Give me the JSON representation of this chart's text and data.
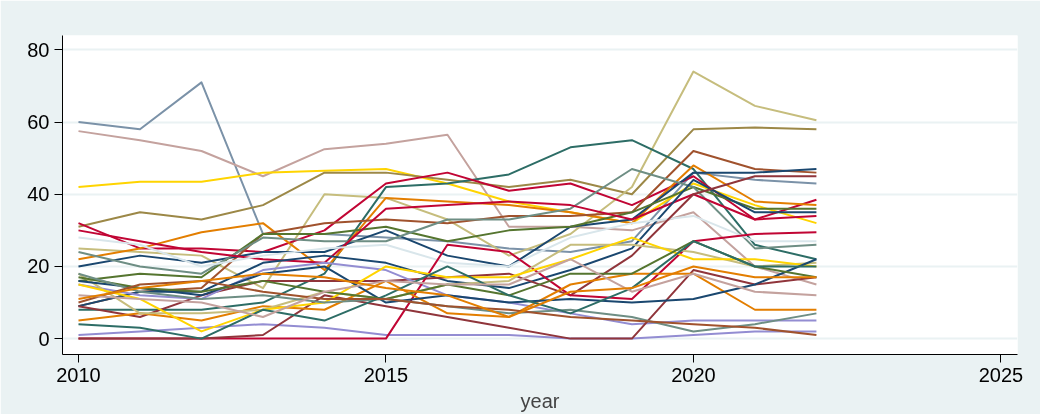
{
  "chart_data": {
    "type": "line",
    "xlabel": "year",
    "x": [
      2010,
      2011,
      2012,
      2013,
      2014,
      2015,
      2016,
      2017,
      2018,
      2019,
      2020,
      2021,
      2022
    ],
    "xlim": [
      2009.74,
      2025.27
    ],
    "xticks": [
      2010,
      2015,
      2020,
      2025
    ],
    "ylim": [
      -4.4,
      84
    ],
    "yticks": [
      0,
      20,
      40,
      60,
      80
    ],
    "grid": "y",
    "marker": "none",
    "line_style": "solid",
    "series": [
      {
        "color": "#7b92a8",
        "values": [
          60,
          58,
          71,
          29,
          29,
          28,
          27,
          25,
          24,
          27,
          46,
          44,
          43
        ]
      },
      {
        "color": "#c4a29e",
        "values": [
          57.5,
          55,
          52,
          45,
          52.5,
          54,
          56.5,
          31,
          31,
          30,
          35,
          20,
          15
        ]
      },
      {
        "color": "#ffd400",
        "values": [
          42,
          43.5,
          43.5,
          46,
          46.5,
          47,
          43,
          38,
          35,
          32,
          43,
          37,
          32
        ]
      },
      {
        "color": "#9c8847",
        "values": [
          31,
          35,
          33,
          37,
          46,
          46,
          44,
          42,
          44,
          40,
          58,
          58.5,
          58
        ]
      },
      {
        "color": "#c6bd7d",
        "values": [
          25,
          24,
          23,
          14,
          40,
          39,
          33,
          23,
          29,
          42,
          74,
          64.5,
          60.5
        ]
      },
      {
        "color": "#2d6d66",
        "values": [
          8,
          8,
          8,
          10,
          18,
          42,
          43,
          45.5,
          53,
          55,
          47,
          26,
          22
        ]
      },
      {
        "color": "#c10534",
        "values": [
          32,
          25,
          25,
          24,
          30,
          43,
          46,
          41,
          43,
          37,
          45,
          33,
          38.5
        ]
      },
      {
        "color": "#e37e00",
        "values": [
          22,
          25,
          29.5,
          32,
          19,
          39,
          38,
          37,
          35,
          32,
          48,
          38,
          37
        ]
      },
      {
        "color": "#a0522d",
        "values": [
          9,
          13,
          14,
          29,
          32,
          33,
          32,
          34,
          34,
          35,
          52,
          47,
          46
        ]
      },
      {
        "color": "#1a476f",
        "values": [
          20,
          23,
          21,
          24,
          24,
          30,
          23,
          20,
          31,
          33,
          46,
          46,
          47
        ]
      },
      {
        "color": "#55752f",
        "values": [
          16,
          18,
          17,
          29,
          29,
          31,
          27,
          30,
          31,
          35,
          42,
          36,
          36
        ]
      },
      {
        "color": "#6e8e84",
        "values": [
          24,
          20,
          18,
          28,
          27,
          27,
          33,
          33,
          36,
          47,
          42,
          25,
          26
        ]
      },
      {
        "color": "#c10534",
        "values": [
          30,
          27,
          24,
          22,
          21,
          36,
          37,
          38,
          37,
          33,
          40,
          33,
          34
        ]
      },
      {
        "color": "#1a476f",
        "values": [
          9,
          13,
          13,
          21,
          23,
          21,
          16,
          14,
          19,
          25,
          44,
          35,
          35
        ]
      },
      {
        "color": "#d9e6eb",
        "values": [
          28,
          26,
          20,
          23,
          25,
          26,
          21,
          20,
          28,
          32,
          34,
          27,
          27
        ]
      },
      {
        "color": "#90353b",
        "values": [
          9,
          6,
          12,
          16,
          16,
          16,
          17,
          18,
          12,
          23,
          40,
          45,
          45
        ]
      },
      {
        "color": "#938dd2",
        "values": [
          15,
          12,
          11,
          19,
          21,
          19,
          12,
          10,
          7,
          4,
          5,
          5,
          5
        ]
      },
      {
        "color": "#938dd2",
        "values": [
          1,
          2,
          3,
          4,
          3,
          1,
          1,
          1,
          0,
          0,
          1,
          2,
          2
        ]
      },
      {
        "color": "#c10534",
        "values": [
          0,
          0,
          0,
          0,
          0,
          0,
          26,
          24,
          12,
          11,
          27,
          29,
          29.5
        ]
      },
      {
        "color": "#90353b",
        "values": [
          0,
          0,
          0,
          1,
          12,
          9,
          6,
          3,
          0,
          0,
          19,
          15,
          17
        ]
      },
      {
        "color": "#e37e00",
        "values": [
          5,
          7,
          5,
          9,
          8,
          16,
          7,
          6,
          15,
          18,
          18,
          8,
          8
        ]
      },
      {
        "color": "#c6bd7d",
        "values": [
          18,
          7,
          7,
          8,
          13,
          11,
          15,
          16,
          26,
          26,
          24,
          20,
          21
        ]
      },
      {
        "color": "#ffd400",
        "values": [
          15,
          11,
          2,
          8,
          10,
          20,
          17,
          17,
          22,
          28,
          22,
          22,
          20
        ]
      },
      {
        "color": "#1a476f",
        "values": [
          16,
          14,
          12,
          18,
          20,
          10,
          12,
          10,
          11,
          10,
          11,
          15,
          22
        ]
      },
      {
        "color": "#55752f",
        "values": [
          17,
          14,
          13,
          16,
          13,
          11,
          15,
          12,
          18,
          18,
          27,
          20,
          17
        ]
      },
      {
        "color": "#6e8e84",
        "values": [
          18,
          13,
          11,
          12,
          10,
          11,
          9,
          7,
          8,
          6,
          2,
          4,
          7
        ]
      },
      {
        "color": "#2d6d66",
        "values": [
          4,
          3,
          0,
          8,
          5,
          12,
          20,
          12,
          7,
          14,
          27,
          20,
          20
        ]
      },
      {
        "color": "#a0522d",
        "values": [
          10,
          15,
          16,
          13,
          11,
          11,
          9,
          8,
          6,
          5,
          4,
          3,
          1
        ]
      },
      {
        "color": "#c4a29e",
        "values": [
          12,
          11,
          10,
          6,
          13,
          16,
          15,
          15,
          22,
          13,
          18,
          13,
          12
        ]
      },
      {
        "color": "#e37e00",
        "values": [
          11,
          14,
          16,
          18,
          17,
          14,
          12,
          6,
          13,
          14,
          20,
          17,
          17
        ]
      }
    ]
  }
}
